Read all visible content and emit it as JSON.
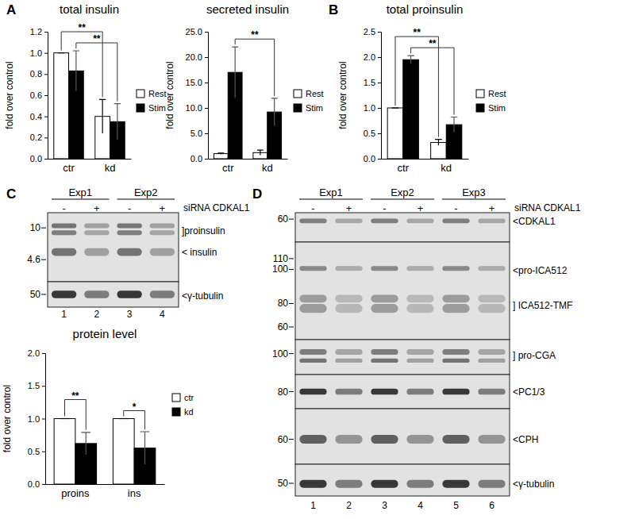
{
  "chart_data": [
    {
      "type": "bar",
      "title": "total insulin",
      "y_label": "fold over control",
      "categories": [
        "ctr",
        "kd"
      ],
      "series": [
        {
          "name": "Rest",
          "color": "#ffffff",
          "values": [
            1.0,
            0.4
          ],
          "errors": [
            0,
            0.16
          ]
        },
        {
          "name": "Stim",
          "color": "#000000",
          "values": [
            0.83,
            0.35
          ],
          "errors": [
            0.19,
            0.17
          ]
        }
      ],
      "ylim": [
        0,
        1.2
      ],
      "yticks": [
        {
          "value": 0,
          "label": "0.0"
        },
        {
          "value": 0.2,
          "label": "0.2"
        },
        {
          "value": 0.4,
          "label": "0.4"
        },
        {
          "value": 0.6,
          "label": "0.6"
        },
        {
          "value": 0.8,
          "label": "0.8"
        },
        {
          "value": 1.0,
          "label": "1.0"
        },
        {
          "value": 1.2,
          "label": "1.2"
        }
      ],
      "legend": "right",
      "annotations": [
        {
          "text": "**",
          "between": [
            [
              "ctr",
              "Rest"
            ],
            [
              "kd",
              "Rest"
            ]
          ]
        },
        {
          "text": "**",
          "between": [
            [
              "ctr",
              "Stim"
            ],
            [
              "kd",
              "Stim"
            ]
          ]
        }
      ]
    },
    {
      "type": "bar",
      "title": "secreted insulin",
      "y_label": "fold over control",
      "categories": [
        "ctr",
        "kd"
      ],
      "series": [
        {
          "name": "Rest",
          "color": "#ffffff",
          "values": [
            1.0,
            1.2
          ],
          "errors": [
            0.1,
            0.5
          ]
        },
        {
          "name": "Stim",
          "color": "#000000",
          "values": [
            17.0,
            9.2
          ],
          "errors": [
            5.0,
            2.7
          ]
        }
      ],
      "ylim": [
        0,
        25
      ],
      "yticks": [
        {
          "value": 0,
          "label": "0.0"
        },
        {
          "value": 5,
          "label": "5.0"
        },
        {
          "value": 10,
          "label": "10.0"
        },
        {
          "value": 15,
          "label": "15.0"
        },
        {
          "value": 20,
          "label": "20.0"
        },
        {
          "value": 25,
          "label": "25.0"
        }
      ],
      "legend": "right",
      "annotations": [
        {
          "text": "**",
          "between": [
            [
              "ctr",
              "Stim"
            ],
            [
              "kd",
              "Stim"
            ]
          ]
        }
      ]
    },
    {
      "type": "bar",
      "title": "total proinsulin",
      "y_label": "fold over control",
      "categories": [
        "ctr",
        "kd"
      ],
      "series": [
        {
          "name": "Rest",
          "color": "#ffffff",
          "values": [
            1.0,
            0.32
          ],
          "errors": [
            0,
            0.06
          ]
        },
        {
          "name": "Stim",
          "color": "#000000",
          "values": [
            1.95,
            0.67
          ],
          "errors": [
            0.08,
            0.15
          ]
        }
      ],
      "ylim": [
        0,
        2.5
      ],
      "yticks": [
        {
          "value": 0,
          "label": "0.0"
        },
        {
          "value": 0.5,
          "label": "0.5"
        },
        {
          "value": 1.0,
          "label": "1.0"
        },
        {
          "value": 1.5,
          "label": "1.5"
        },
        {
          "value": 2.0,
          "label": "2.0"
        },
        {
          "value": 2.5,
          "label": "2.5"
        }
      ],
      "legend": "right",
      "annotations": [
        {
          "text": "**",
          "between": [
            [
              "ctr",
              "Rest"
            ],
            [
              "kd",
              "Rest"
            ]
          ]
        },
        {
          "text": "**",
          "between": [
            [
              "ctr",
              "Stim"
            ],
            [
              "kd",
              "Stim"
            ]
          ]
        }
      ]
    },
    {
      "type": "bar",
      "title": "protein level",
      "y_label": "fold over control",
      "categories": [
        "proins",
        "ins"
      ],
      "series": [
        {
          "name": "ctr",
          "color": "#ffffff",
          "values": [
            1.0,
            1.0
          ],
          "errors": [
            0,
            0
          ]
        },
        {
          "name": "kd",
          "color": "#000000",
          "values": [
            0.62,
            0.55
          ],
          "errors": [
            0.17,
            0.25
          ]
        }
      ],
      "ylim": [
        0,
        2.0
      ],
      "yticks": [
        {
          "value": 0,
          "label": "0.0"
        },
        {
          "value": 0.5,
          "label": "0.5"
        },
        {
          "value": 1.0,
          "label": "1.0"
        },
        {
          "value": 1.5,
          "label": "1.5"
        },
        {
          "value": 2.0,
          "label": "2.0"
        }
      ],
      "legend": "right",
      "annotations": [
        {
          "text": "**",
          "between": [
            [
              "proins",
              "ctr"
            ],
            [
              "proins",
              "kd"
            ]
          ]
        },
        {
          "text": "*",
          "between": [
            [
              "ins",
              "ctr"
            ],
            [
              "ins",
              "kd"
            ]
          ]
        }
      ]
    }
  ],
  "panel_labels": [
    "A",
    "B",
    "C",
    "D"
  ],
  "blots": [
    {
      "groups": [
        "Exp1",
        "Exp2"
      ],
      "treatment": [
        "-",
        "+",
        "-",
        "+"
      ],
      "treatment_label": "siRNA CDKAL1",
      "lane_numbers": [
        1,
        2,
        3,
        4
      ],
      "strips": [
        {
          "markers": [
            10,
            4.6
          ],
          "labels": [
            "]proinsulin",
            "< insulin"
          ]
        },
        {
          "markers": [
            50
          ],
          "labels": [
            "<γ-tubulin"
          ]
        }
      ]
    },
    {
      "groups": [
        "Exp1",
        "Exp2",
        "Exp3"
      ],
      "treatment": [
        "-",
        "+",
        "-",
        "+",
        "-",
        "+"
      ],
      "treatment_label": "siRNA CDKAL1",
      "lane_numbers": [
        1,
        2,
        3,
        4,
        5,
        6
      ],
      "strips": [
        {
          "markers": [
            60
          ],
          "labels": [
            "<CDKAL1"
          ]
        },
        {
          "markers": [
            110,
            100,
            80,
            60
          ],
          "labels": [
            "<pro-ICA512",
            "] ICA512-TMF"
          ]
        },
        {
          "markers": [
            100
          ],
          "labels": [
            "] pro-CGA"
          ]
        },
        {
          "markers": [
            80
          ],
          "labels": [
            "<PC1/3"
          ]
        },
        {
          "markers": [
            60
          ],
          "labels": [
            "<CPH"
          ]
        },
        {
          "markers": [
            50
          ],
          "labels": [
            "<γ-tubulin"
          ]
        }
      ]
    }
  ]
}
